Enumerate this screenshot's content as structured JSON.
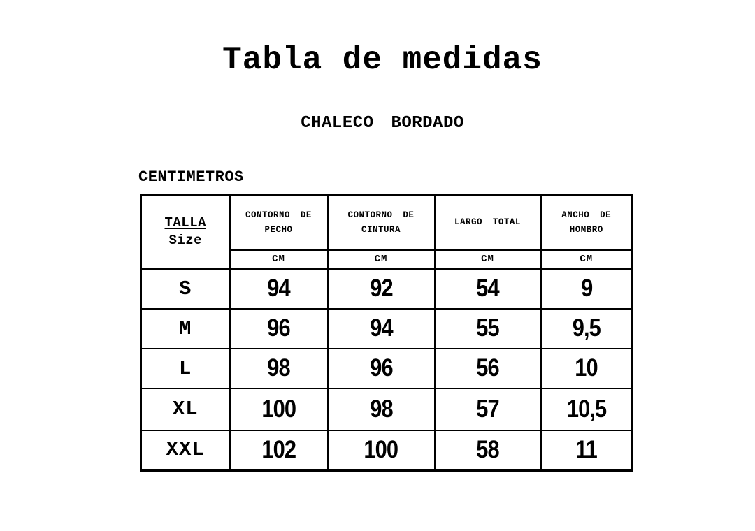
{
  "page": {
    "title": "Tabla de medidas",
    "subtitle": "CHALECO BORDADO",
    "unit_label": "CENTIMETROS"
  },
  "size_table": {
    "size_column": {
      "lines": [
        "TALLA",
        "Size"
      ]
    },
    "measure_columns": [
      {
        "lines": [
          "CONTORNO DE",
          "PECHO"
        ],
        "unit": "CM"
      },
      {
        "lines": [
          "CONTORNO DE",
          "CINTURA"
        ],
        "unit": "CM"
      },
      {
        "lines": [
          "LARGO TOTAL"
        ],
        "unit": "CM"
      },
      {
        "lines": [
          "ANCHO DE",
          "HOMBRO"
        ],
        "unit": "CM"
      }
    ],
    "rows": [
      {
        "size": "S",
        "values": [
          "94",
          "92",
          "54",
          "9"
        ]
      },
      {
        "size": "M",
        "values": [
          "96",
          "94",
          "55",
          "9,5"
        ]
      },
      {
        "size": "L",
        "values": [
          "98",
          "96",
          "56",
          "10"
        ]
      },
      {
        "size": "XL",
        "values": [
          "100",
          "98",
          "57",
          "10,5"
        ]
      },
      {
        "size": "XXL",
        "values": [
          "102",
          "100",
          "58",
          "11"
        ]
      }
    ]
  }
}
